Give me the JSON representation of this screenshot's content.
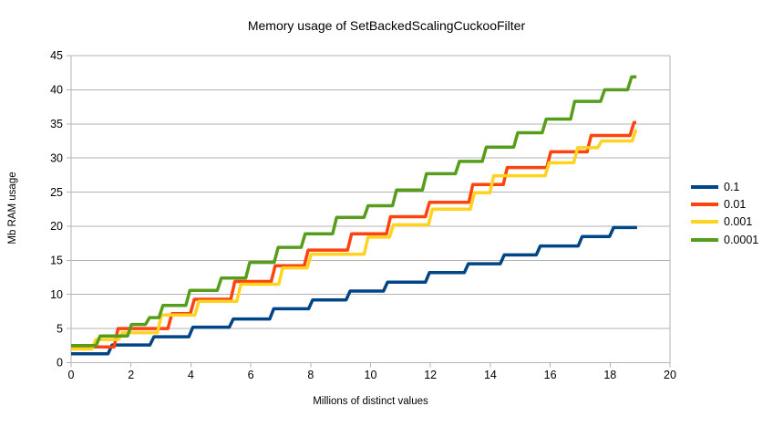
{
  "title": "Memory usage of SetBackedScalingCuckooFilter",
  "colors": {
    "background": "#ffffff",
    "grid": "#b3b3b3",
    "axis": "#b3b3b3",
    "text": "#000000"
  },
  "chart_data": {
    "type": "line",
    "subtype": "step-staircase",
    "title": "Memory usage of SetBackedScalingCuckooFilter",
    "xlabel": "Millions of distinct values",
    "ylabel": "Mb RAM usage",
    "xlim": [
      0,
      20
    ],
    "ylim": [
      0,
      45
    ],
    "x_ticks": [
      0,
      2,
      4,
      6,
      8,
      10,
      12,
      14,
      16,
      18,
      20
    ],
    "y_ticks": [
      0,
      5,
      10,
      15,
      20,
      25,
      30,
      35,
      40,
      45
    ],
    "grid": "horizontal",
    "legend_position": "right",
    "series": [
      {
        "name": "0.1",
        "color": "#004586",
        "end_x": 18.9,
        "steps": [
          [
            0,
            1.3
          ],
          [
            1.3,
            2.6
          ],
          [
            2.7,
            3.8
          ],
          [
            4.0,
            5.2
          ],
          [
            5.35,
            6.4
          ],
          [
            6.7,
            7.9
          ],
          [
            8.0,
            9.2
          ],
          [
            9.25,
            10.5
          ],
          [
            10.5,
            11.8
          ],
          [
            11.9,
            13.2
          ],
          [
            13.2,
            14.5
          ],
          [
            14.4,
            15.8
          ],
          [
            15.6,
            17.1
          ],
          [
            17.0,
            18.5
          ],
          [
            18.05,
            19.8
          ]
        ]
      },
      {
        "name": "0.01",
        "color": "#FF420E",
        "end_x": 18.87,
        "steps": [
          [
            0,
            2.3
          ],
          [
            1.5,
            5.0
          ],
          [
            3.3,
            7.2
          ],
          [
            4.05,
            9.3
          ],
          [
            5.4,
            11.9
          ],
          [
            6.75,
            14.2
          ],
          [
            7.85,
            16.5
          ],
          [
            9.3,
            18.9
          ],
          [
            10.6,
            21.4
          ],
          [
            11.9,
            23.5
          ],
          [
            13.35,
            26.1
          ],
          [
            14.5,
            28.6
          ],
          [
            15.95,
            30.9
          ],
          [
            17.3,
            33.3
          ],
          [
            18.73,
            35.2
          ]
        ]
      },
      {
        "name": "0.001",
        "color": "#FFD320",
        "end_x": 18.87,
        "steps": [
          [
            0,
            2.0
          ],
          [
            0.76,
            3.4
          ],
          [
            1.65,
            4.4
          ],
          [
            2.95,
            7.0
          ],
          [
            4.2,
            9.0
          ],
          [
            5.6,
            11.5
          ],
          [
            7.0,
            13.9
          ],
          [
            7.95,
            15.9
          ],
          [
            9.85,
            18.4
          ],
          [
            10.7,
            20.2
          ],
          [
            12.0,
            22.5
          ],
          [
            13.4,
            24.9
          ],
          [
            14.05,
            27.4
          ],
          [
            15.9,
            29.3
          ],
          [
            16.85,
            31.5
          ],
          [
            17.65,
            32.5
          ],
          [
            18.8,
            34.1
          ]
        ]
      },
      {
        "name": "0.0001",
        "color": "#579D1C",
        "end_x": 18.88,
        "steps": [
          [
            0,
            2.5
          ],
          [
            0.9,
            3.9
          ],
          [
            1.95,
            5.6
          ],
          [
            2.55,
            6.6
          ],
          [
            3.0,
            8.4
          ],
          [
            3.9,
            10.6
          ],
          [
            4.95,
            12.4
          ],
          [
            5.9,
            14.7
          ],
          [
            6.85,
            16.9
          ],
          [
            7.75,
            18.9
          ],
          [
            8.8,
            21.3
          ],
          [
            9.85,
            23.0
          ],
          [
            10.8,
            25.3
          ],
          [
            11.8,
            27.7
          ],
          [
            12.9,
            29.5
          ],
          [
            13.8,
            31.6
          ],
          [
            14.85,
            33.7
          ],
          [
            15.8,
            35.7
          ],
          [
            16.75,
            38.3
          ],
          [
            17.75,
            40.0
          ],
          [
            18.65,
            41.9
          ]
        ]
      }
    ]
  }
}
